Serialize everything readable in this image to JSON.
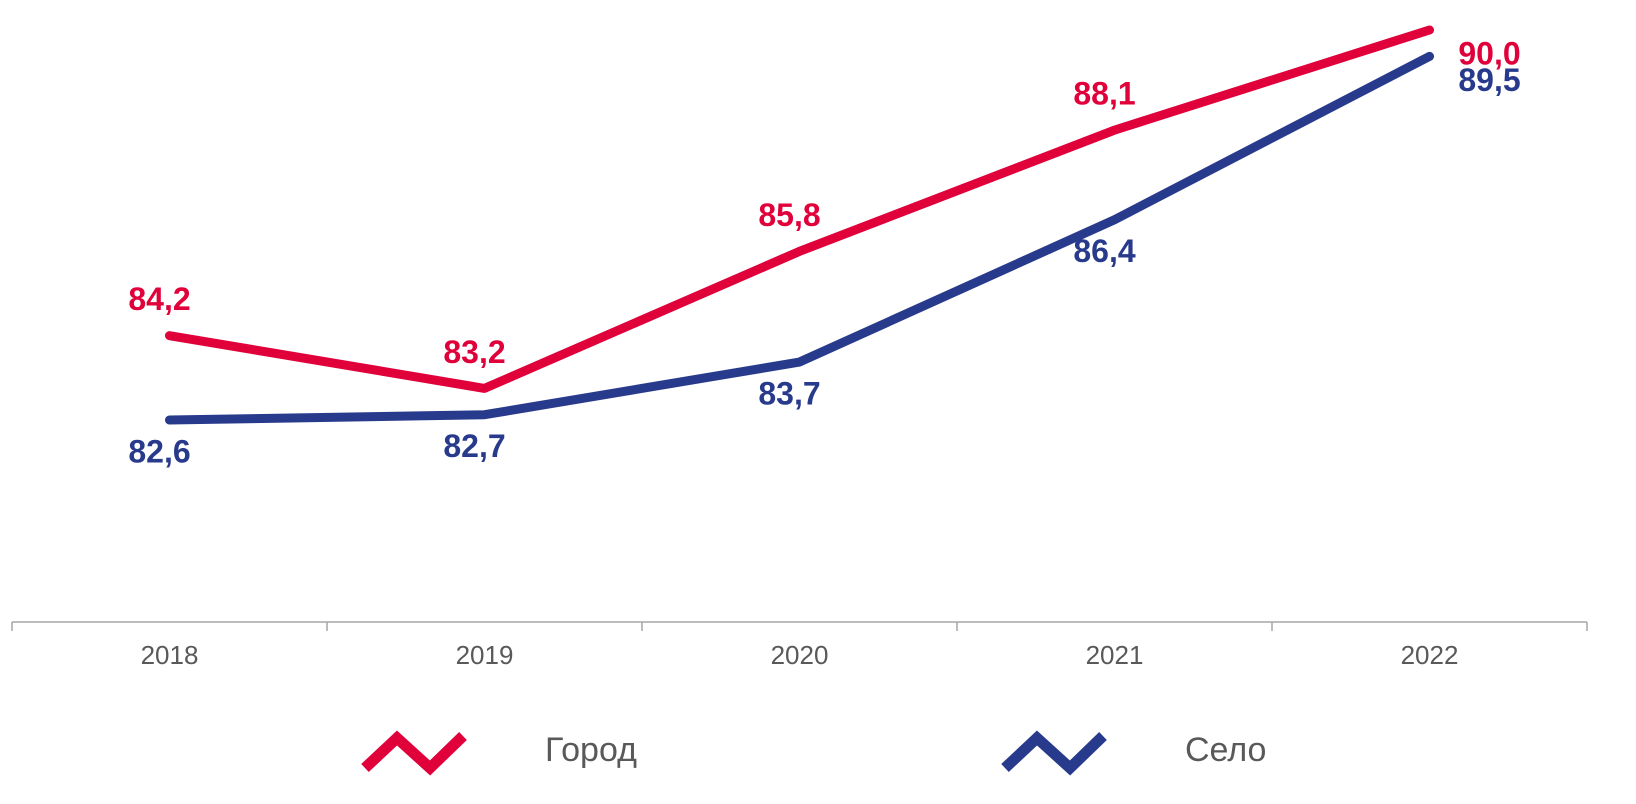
{
  "chart_data": {
    "type": "line",
    "categories": [
      "2018",
      "2019",
      "2020",
      "2021",
      "2022"
    ],
    "series": [
      {
        "name": "Город",
        "color": "#e0003a",
        "values": [
          84.2,
          83.2,
          85.8,
          88.1,
          90.0
        ],
        "value_labels": [
          "84,2",
          "83,2",
          "85,8",
          "88,1",
          "90,0"
        ]
      },
      {
        "name": "Село",
        "color": "#283a8c",
        "values": [
          82.6,
          82.7,
          83.7,
          86.4,
          89.5
        ],
        "value_labels": [
          "82,6",
          "82,7",
          "83,7",
          "86,4",
          "89,5"
        ]
      }
    ],
    "legend": "bottom"
  }
}
